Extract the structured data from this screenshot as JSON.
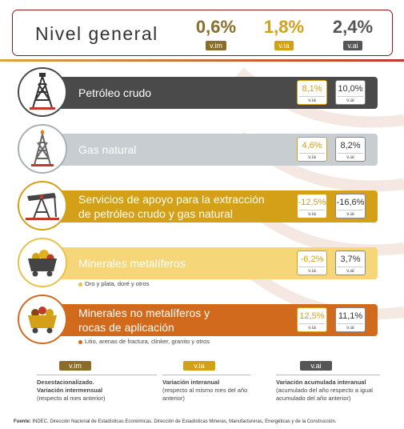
{
  "header": {
    "title": "Nivel general",
    "values": [
      {
        "value": "0,6%",
        "tag": "v.im",
        "color": "#8a6d2a",
        "tag_bg": "#8a6d2a"
      },
      {
        "value": "1,8%",
        "tag": "v.ia",
        "color": "#d4a017",
        "tag_bg": "#d4a017"
      },
      {
        "value": "2,4%",
        "tag": "v.ai",
        "color": "#555555",
        "tag_bg": "#555555"
      }
    ]
  },
  "rows": [
    {
      "label_line1": "Petróleo crudo",
      "label_line2": "",
      "via": "8,1%",
      "vai": "10,0%",
      "via_tag": "v.ia",
      "vai_tag": "v.ai",
      "color": "#4a4a4a",
      "icon": "oil-derrick-icon",
      "note": ""
    },
    {
      "label_line1": "Gas natural",
      "label_line2": "",
      "via": "4,6%",
      "vai": "8,2%",
      "via_tag": "v.ia",
      "vai_tag": "v.ai",
      "color": "#c8cdd2",
      "icon": "gas-rig-icon",
      "note": ""
    },
    {
      "label_line1": "Servicios de apoyo para la extracción",
      "label_line2": "de petróleo crudo y gas natural",
      "via": "-12,5%",
      "vai": "-16,6%",
      "via_tag": "v.ia",
      "vai_tag": "v.ai",
      "color": "#d4a017",
      "icon": "pumpjack-icon",
      "note": ""
    },
    {
      "label_line1": "Minerales metalíferos",
      "label_line2": "",
      "via": "-6,2%",
      "vai": "3,7%",
      "via_tag": "v.ia",
      "vai_tag": "v.ai",
      "color": "#f5d77a",
      "icon": "mine-cart-gold-icon",
      "note": "Oro y plata, doré y otros"
    },
    {
      "label_line1": "Minerales no metalíferos y",
      "label_line2": "rocas de aplicación",
      "via": "12,5%",
      "vai": "11,1%",
      "via_tag": "v.ia",
      "vai_tag": "v.ai",
      "color": "#d26a1e",
      "icon": "mine-cart-rocks-icon",
      "note": "Litio, arenas de fractura, clinker, granito y otros"
    }
  ],
  "legend": [
    {
      "tag": "v.im",
      "bold": "Desestacionalizado.\nVariación intermensual",
      "rest": "(respecto al mes anterior)",
      "color": "#8a6d2a"
    },
    {
      "tag": "v.ia",
      "bold": "Variación interanual",
      "rest": "(respecto al mismo mes del año anterior)",
      "color": "#d4a017"
    },
    {
      "tag": "v.ai",
      "bold": "Variación acumulada interanual",
      "rest": "(acumulado del año respecto a igual acumulado del año anterior)",
      "color": "#555555"
    }
  ],
  "source": {
    "label": "Fuente:",
    "text": " INDEC, Dirección Nacional de Estadísticas Económicas. Dirección de Estadísticas Mineras, Manufactureras, Energéticas y de la Construcción."
  }
}
